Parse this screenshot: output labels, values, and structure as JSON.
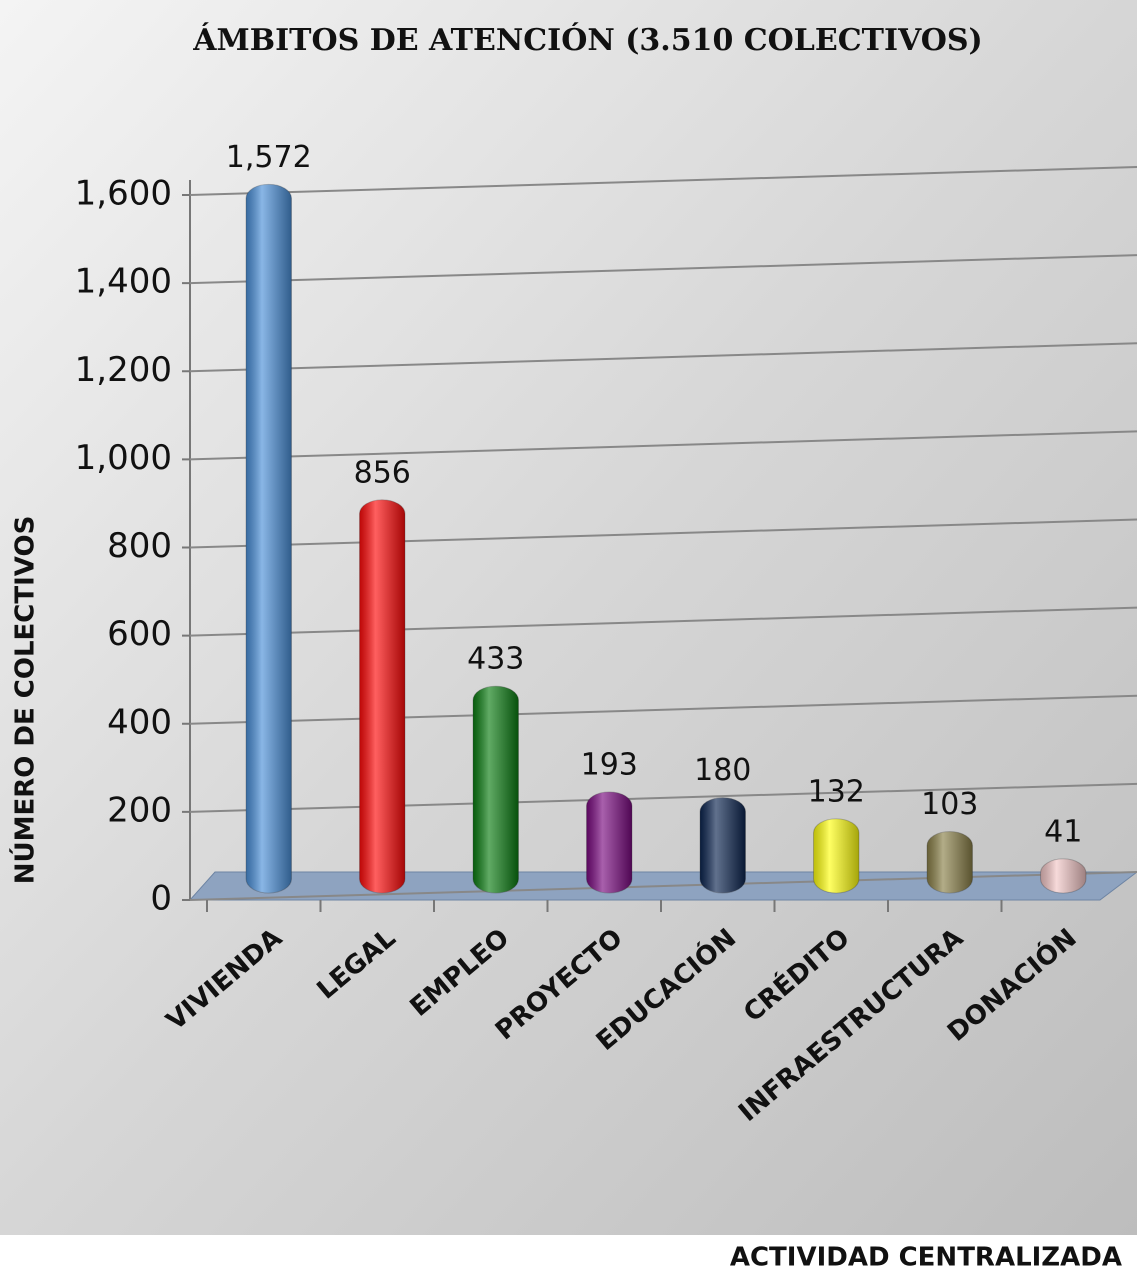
{
  "chart_data": {
    "type": "bar",
    "title": "ÁMBITOS DE ATENCIÓN (3.510 COLECTIVOS)",
    "y_label": "NÚMERO DE COLECTIVOS",
    "x_label": "ACTIVIDAD CENTRALIZADA",
    "categories": [
      "VIVIENDA",
      "LEGAL",
      "EMPLEO",
      "PROYECTO",
      "EDUCACIÓN",
      "CRÉDITO",
      "INFRAESTRUCTURA",
      "DONACIÓN"
    ],
    "values": [
      1572,
      856,
      433,
      193,
      180,
      132,
      103,
      41
    ],
    "value_labels": [
      "1,572",
      "856",
      "433",
      "193",
      "180",
      "132",
      "103",
      "41"
    ],
    "colors": [
      "#4a8fd8",
      "#ff0a0a",
      "#0b7d12",
      "#7a0a80",
      "#0c2550",
      "#ffff10",
      "#8a8048",
      "#f2c6c6"
    ],
    "ylim": [
      0,
      1600
    ],
    "yticks": [
      0,
      200,
      400,
      600,
      800,
      {
        "value": 1000,
        "label": "1,000"
      },
      {
        "value": 1200,
        "label": "1,200"
      },
      {
        "value": 1400,
        "label": "1,400"
      },
      {
        "value": 1600,
        "label": "1,600"
      }
    ],
    "grid": true
  }
}
